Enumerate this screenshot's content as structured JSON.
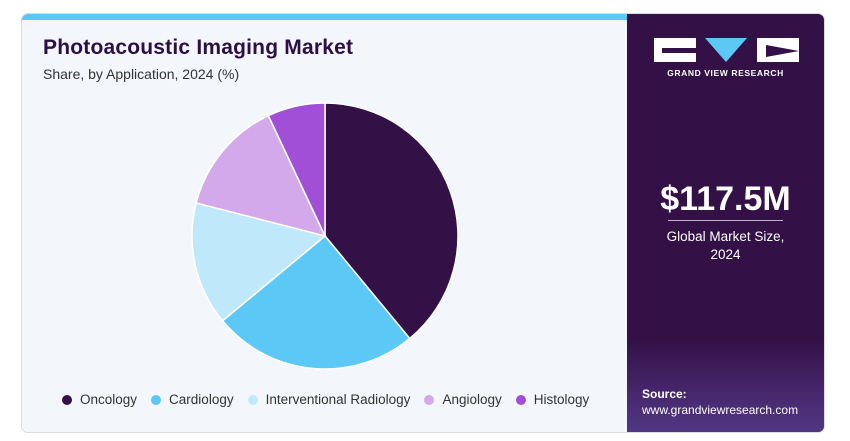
{
  "header": {
    "title": "Photoacoustic Imaging Market",
    "subtitle": "Share, by Application, 2024 (%)"
  },
  "chart_data": {
    "type": "pie",
    "title": "Photoacoustic Imaging Market",
    "subtitle": "Share, by Application, 2024 (%)",
    "categories": [
      "Oncology",
      "Cardiology",
      "Interventional Radiology",
      "Angiology",
      "Histology"
    ],
    "values": [
      39,
      25,
      15,
      14,
      7
    ],
    "colors": [
      "#331146",
      "#5bc8f5",
      "#bfe8fa",
      "#d4a9ec",
      "#a04fd6"
    ],
    "start_angle_deg": 0,
    "direction": "clockwise",
    "legend_position": "bottom"
  },
  "sidebar": {
    "logo_text": "GRAND VIEW RESEARCH",
    "market_value": "$117.5M",
    "market_label_line1": "Global Market Size,",
    "market_label_line2": "2024",
    "source_label": "Source:",
    "source_url": "www.grandviewresearch.com"
  },
  "theme": {
    "accent": "#5bc8f5",
    "brand": "#331146"
  }
}
